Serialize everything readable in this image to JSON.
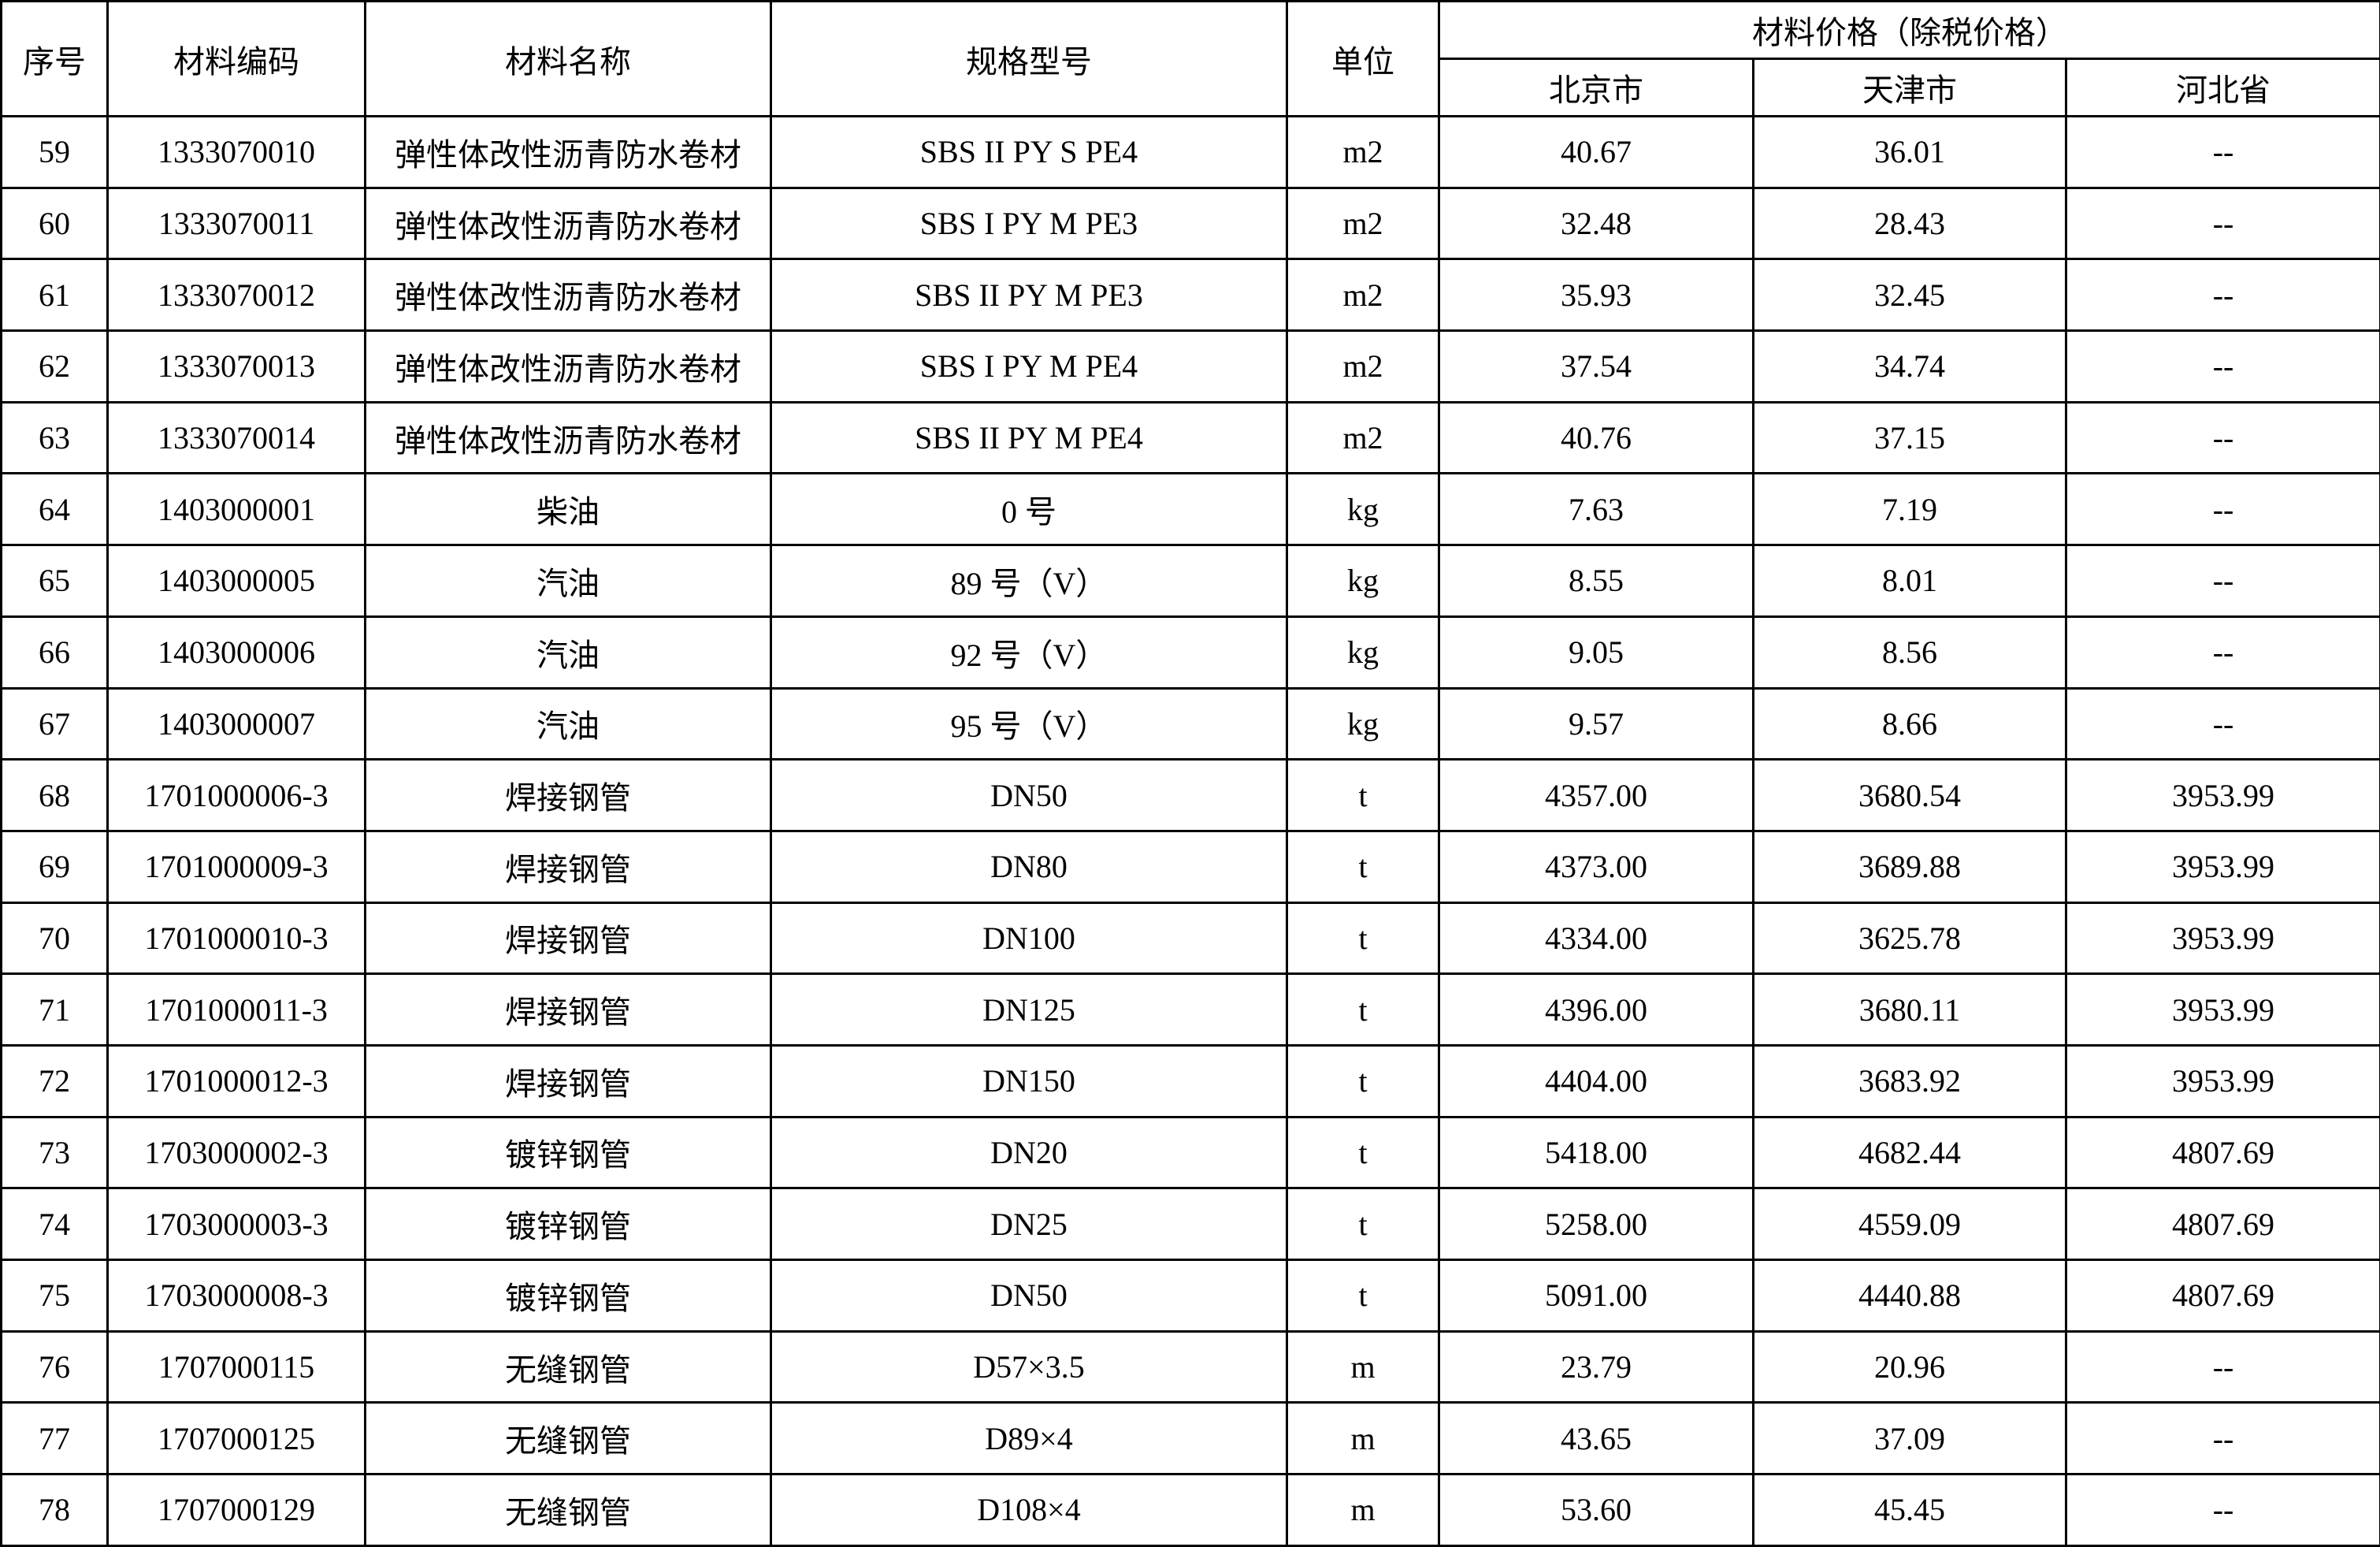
{
  "header": {
    "seq": "序号",
    "code": "材料编码",
    "name": "材料名称",
    "spec": "规格型号",
    "unit": "单位",
    "price_group": "材料价格（除税价格）",
    "regions": [
      "北京市",
      "天津市",
      "河北省"
    ]
  },
  "rows": [
    [
      "59",
      "1333070010",
      "弹性体改性沥青防水卷材",
      "SBS II PY S PE4",
      "m2",
      "40.67",
      "36.01",
      "--"
    ],
    [
      "60",
      "1333070011",
      "弹性体改性沥青防水卷材",
      "SBS I PY M PE3",
      "m2",
      "32.48",
      "28.43",
      "--"
    ],
    [
      "61",
      "1333070012",
      "弹性体改性沥青防水卷材",
      "SBS II PY M PE3",
      "m2",
      "35.93",
      "32.45",
      "--"
    ],
    [
      "62",
      "1333070013",
      "弹性体改性沥青防水卷材",
      "SBS I PY M PE4",
      "m2",
      "37.54",
      "34.74",
      "--"
    ],
    [
      "63",
      "1333070014",
      "弹性体改性沥青防水卷材",
      "SBS II PY M PE4",
      "m2",
      "40.76",
      "37.15",
      "--"
    ],
    [
      "64",
      "1403000001",
      "柴油",
      "0 号",
      "kg",
      "7.63",
      "7.19",
      "--"
    ],
    [
      "65",
      "1403000005",
      "汽油",
      "89 号（V）",
      "kg",
      "8.55",
      "8.01",
      "--"
    ],
    [
      "66",
      "1403000006",
      "汽油",
      "92 号（V）",
      "kg",
      "9.05",
      "8.56",
      "--"
    ],
    [
      "67",
      "1403000007",
      "汽油",
      "95 号（V）",
      "kg",
      "9.57",
      "8.66",
      "--"
    ],
    [
      "68",
      "1701000006-3",
      "焊接钢管",
      "DN50",
      "t",
      "4357.00",
      "3680.54",
      "3953.99"
    ],
    [
      "69",
      "1701000009-3",
      "焊接钢管",
      "DN80",
      "t",
      "4373.00",
      "3689.88",
      "3953.99"
    ],
    [
      "70",
      "1701000010-3",
      "焊接钢管",
      "DN100",
      "t",
      "4334.00",
      "3625.78",
      "3953.99"
    ],
    [
      "71",
      "1701000011-3",
      "焊接钢管",
      "DN125",
      "t",
      "4396.00",
      "3680.11",
      "3953.99"
    ],
    [
      "72",
      "1701000012-3",
      "焊接钢管",
      "DN150",
      "t",
      "4404.00",
      "3683.92",
      "3953.99"
    ],
    [
      "73",
      "1703000002-3",
      "镀锌钢管",
      "DN20",
      "t",
      "5418.00",
      "4682.44",
      "4807.69"
    ],
    [
      "74",
      "1703000003-3",
      "镀锌钢管",
      "DN25",
      "t",
      "5258.00",
      "4559.09",
      "4807.69"
    ],
    [
      "75",
      "1703000008-3",
      "镀锌钢管",
      "DN50",
      "t",
      "5091.00",
      "4440.88",
      "4807.69"
    ],
    [
      "76",
      "1707000115",
      "无缝钢管",
      "D57×3.5",
      "m",
      "23.79",
      "20.96",
      "--"
    ],
    [
      "77",
      "1707000125",
      "无缝钢管",
      "D89×4",
      "m",
      "43.65",
      "37.09",
      "--"
    ],
    [
      "78",
      "1707000129",
      "无缝钢管",
      "D108×4",
      "m",
      "53.60",
      "45.45",
      "--"
    ]
  ]
}
